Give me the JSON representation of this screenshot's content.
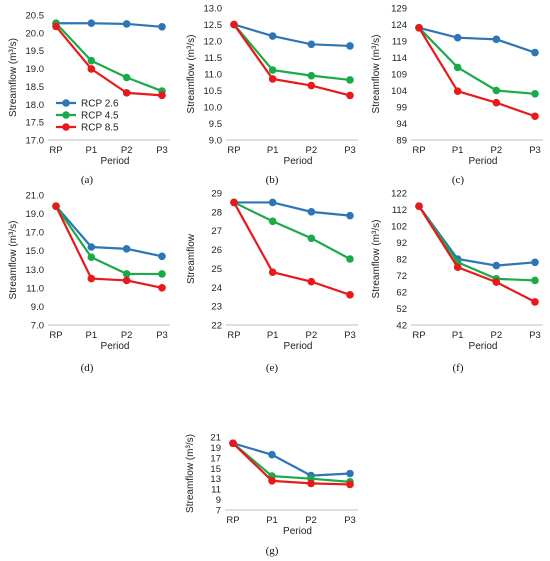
{
  "colors": {
    "rcp26": "#2e75b6",
    "rcp45": "#1aaa4a",
    "rcp85": "#e8191b"
  },
  "legend": [
    {
      "name": "RCP 2.6",
      "key": "rcp26"
    },
    {
      "name": "RCP 4.5",
      "key": "rcp45"
    },
    {
      "name": "RCP 8.5",
      "key": "rcp85"
    }
  ],
  "chart_data": [
    {
      "panel": "(a)",
      "type": "line",
      "categories": [
        "RP",
        "P1",
        "P2",
        "P3"
      ],
      "xlabel": "Period",
      "ylabel": "Streamflow (m³/s)",
      "ylim": [
        17.0,
        20.5
      ],
      "yticks": [
        "17.0",
        "17.5",
        "18.0",
        "18.5",
        "19.0",
        "19.5",
        "20.0",
        "20.5"
      ],
      "series": [
        {
          "name": "RCP 2.6",
          "key": "rcp26",
          "values": [
            20.27,
            20.27,
            20.25,
            20.17
          ]
        },
        {
          "name": "RCP 4.5",
          "key": "rcp45",
          "values": [
            20.27,
            19.22,
            18.75,
            18.37
          ]
        },
        {
          "name": "RCP 8.5",
          "key": "rcp85",
          "values": [
            20.18,
            18.99,
            18.32,
            18.25
          ]
        }
      ]
    },
    {
      "panel": "(b)",
      "type": "line",
      "categories": [
        "RP",
        "P1",
        "P2",
        "P3"
      ],
      "xlabel": "Period",
      "ylabel": "Streamflow (m³/s)",
      "ylim": [
        9.0,
        13.0
      ],
      "yticks": [
        "9.0",
        "9.5",
        "10.0",
        "10.5",
        "11.0",
        "11.5",
        "12.0",
        "12.5",
        "13.0"
      ],
      "series": [
        {
          "name": "RCP 2.6",
          "key": "rcp26",
          "values": [
            12.5,
            12.15,
            11.9,
            11.85
          ]
        },
        {
          "name": "RCP 4.5",
          "key": "rcp45",
          "values": [
            12.5,
            11.12,
            10.95,
            10.82
          ]
        },
        {
          "name": "RCP 8.5",
          "key": "rcp85",
          "values": [
            12.5,
            10.85,
            10.65,
            10.35
          ]
        }
      ]
    },
    {
      "panel": "(c)",
      "type": "line",
      "categories": [
        "RP",
        "P1",
        "P2",
        "P3"
      ],
      "xlabel": "Period",
      "ylabel": "Streamflow (m³/s)",
      "ylim": [
        89,
        129
      ],
      "yticks": [
        "89",
        "94",
        "99",
        "104",
        "109",
        "114",
        "119",
        "124",
        "129"
      ],
      "series": [
        {
          "name": "RCP 2.6",
          "key": "rcp26",
          "values": [
            123,
            120,
            119.5,
            115.5
          ]
        },
        {
          "name": "RCP 4.5",
          "key": "rcp45",
          "values": [
            123,
            111,
            104,
            103
          ]
        },
        {
          "name": "RCP 8.5",
          "key": "rcp85",
          "values": [
            123,
            103.8,
            100.3,
            96.2
          ]
        }
      ]
    },
    {
      "panel": "(d)",
      "type": "line",
      "categories": [
        "RP",
        "P1",
        "P2",
        "P3"
      ],
      "xlabel": "Period",
      "ylabel": "Streamflow (m³/s)",
      "ylim": [
        7.0,
        21.0
      ],
      "yticks": [
        "7.0",
        "9.0",
        "11.0",
        "13.0",
        "15.0",
        "17.0",
        "19.0",
        "21.0"
      ],
      "series": [
        {
          "name": "RCP 2.6",
          "key": "rcp26",
          "values": [
            19.8,
            15.4,
            15.2,
            14.4
          ]
        },
        {
          "name": "RCP 4.5",
          "key": "rcp45",
          "values": [
            19.8,
            14.3,
            12.5,
            12.5
          ]
        },
        {
          "name": "RCP 8.5",
          "key": "rcp85",
          "values": [
            19.8,
            12.0,
            11.8,
            11.0
          ]
        }
      ]
    },
    {
      "panel": "(e)",
      "type": "line",
      "categories": [
        "RP",
        "P1",
        "P2",
        "P3"
      ],
      "xlabel": "Period",
      "ylabel": "Streamflow",
      "ylim": [
        22,
        29
      ],
      "yticks": [
        "22",
        "23",
        "24",
        "25",
        "26",
        "27",
        "28",
        "29"
      ],
      "series": [
        {
          "name": "RCP 2.6",
          "key": "rcp26",
          "values": [
            28.5,
            28.5,
            28.0,
            27.8
          ]
        },
        {
          "name": "RCP 4.5",
          "key": "rcp45",
          "values": [
            28.5,
            27.5,
            26.6,
            25.5
          ]
        },
        {
          "name": "RCP 8.5",
          "key": "rcp85",
          "values": [
            28.5,
            24.8,
            24.3,
            23.6
          ]
        }
      ]
    },
    {
      "panel": "(f)",
      "type": "line",
      "categories": [
        "RP",
        "P1",
        "P2",
        "P3"
      ],
      "xlabel": "Period",
      "ylabel": "Streamflow (m³/s)",
      "ylim": [
        42,
        122
      ],
      "yticks": [
        "42",
        "52",
        "62",
        "72",
        "82",
        "92",
        "102",
        "112",
        "122"
      ],
      "series": [
        {
          "name": "RCP 2.6",
          "key": "rcp26",
          "values": [
            114,
            82,
            78,
            80
          ]
        },
        {
          "name": "RCP 4.5",
          "key": "rcp45",
          "values": [
            114,
            80,
            70,
            69
          ]
        },
        {
          "name": "RCP 8.5",
          "key": "rcp85",
          "values": [
            114,
            77,
            68,
            56
          ]
        }
      ]
    },
    {
      "panel": "(g)",
      "type": "line",
      "categories": [
        "RP",
        "P1",
        "P2",
        "P3"
      ],
      "xlabel": "Period",
      "ylabel": "Streamflow (m³/s)",
      "ylim": [
        7,
        21
      ],
      "yticks": [
        "7",
        "9",
        "11",
        "13",
        "15",
        "17",
        "19",
        "21"
      ],
      "series": [
        {
          "name": "RCP 2.6",
          "key": "rcp26",
          "values": [
            19.8,
            17.6,
            13.6,
            14.0
          ]
        },
        {
          "name": "RCP 4.5",
          "key": "rcp45",
          "values": [
            19.8,
            13.5,
            13.0,
            12.4
          ]
        },
        {
          "name": "RCP 8.5",
          "key": "rcp85",
          "values": [
            19.8,
            12.6,
            12.1,
            11.9
          ]
        }
      ]
    }
  ]
}
